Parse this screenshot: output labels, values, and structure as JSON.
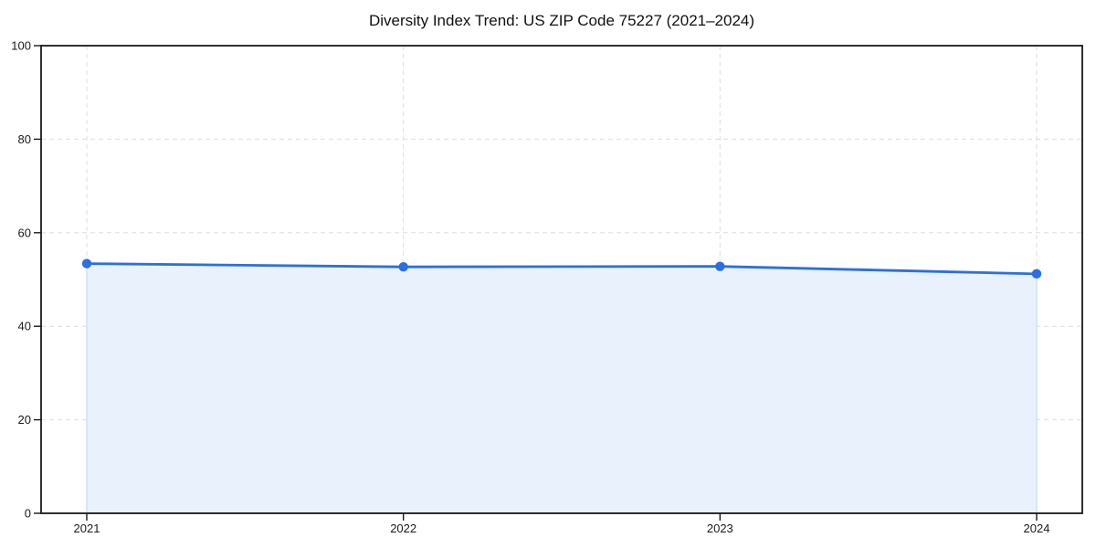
{
  "chart_data": {
    "type": "area",
    "title": "Diversity Index Trend: US ZIP Code 75227 (2021–2024)",
    "x": [
      "2021",
      "2022",
      "2023",
      "2024"
    ],
    "series": [
      {
        "name": "Diversity Index",
        "values": [
          53.4,
          52.7,
          52.8,
          51.2
        ]
      }
    ],
    "xlabel": "",
    "ylabel": "",
    "ylim": [
      0,
      100
    ],
    "yticks": [
      0,
      20,
      40,
      60,
      80,
      100
    ],
    "grid": true,
    "grid_style": "dashed",
    "legend_position": "none",
    "marker": "circle",
    "colors": {
      "line": "#2b6fe0",
      "marker": "#2b6fe0",
      "area_fill": "#e9f1fc",
      "area_edge": "#cfe0f7",
      "grid": "#dedede",
      "spine": "#1a1a1a",
      "text": "#1a1a1a",
      "background": "#ffffff"
    }
  }
}
